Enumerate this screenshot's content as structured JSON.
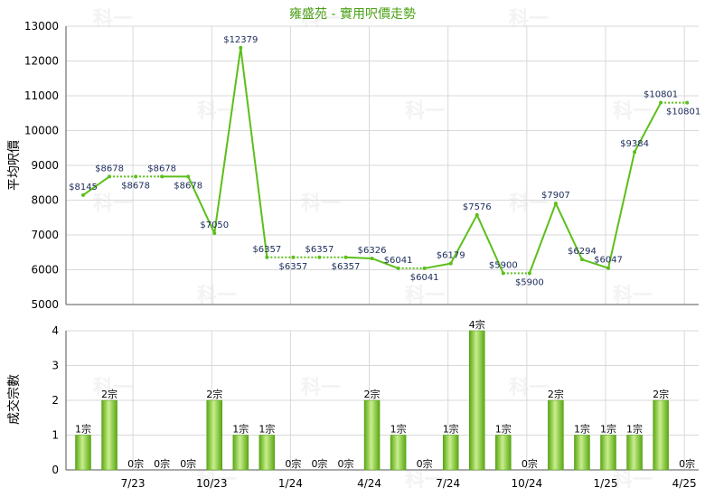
{
  "chart_data": [
    {
      "type": "line",
      "title": "雍盛苑 - 實用呎價走勢",
      "ylabel": "平均呎價",
      "ylim": [
        5000,
        13000
      ],
      "yticks": [
        5000,
        6000,
        7000,
        8000,
        9000,
        10000,
        11000,
        12000,
        13000
      ],
      "series": [
        {
          "values": [
            8145,
            8678,
            8678,
            8678,
            8678,
            7050,
            12379,
            6357,
            6357,
            6357,
            6357,
            6326,
            6041,
            6041,
            6179,
            7576,
            5900,
            5900,
            7907,
            6294,
            6047,
            9384,
            10801,
            10801
          ],
          "labels": [
            "$8145",
            "$8678",
            "$8678",
            "$8678",
            "$8678",
            "$7050",
            "$12379",
            "$6357",
            "$6357",
            "$6357",
            "$6357",
            "$6326",
            "$6041",
            "$6041",
            "$6179",
            "$7576",
            "$5900",
            "$5900",
            "$7907",
            "$6294",
            "$6047",
            "$9384",
            "$10801",
            "$10801"
          ],
          "interpolated": [
            false,
            false,
            true,
            true,
            false,
            false,
            false,
            false,
            true,
            true,
            true,
            false,
            false,
            true,
            false,
            false,
            false,
            true,
            false,
            false,
            false,
            false,
            false,
            true
          ],
          "color": "#5cbf1a"
        }
      ]
    },
    {
      "type": "bar",
      "ylabel": "成交宗數",
      "ylim": [
        0,
        4
      ],
      "yticks": [
        0,
        1,
        2,
        3,
        4
      ],
      "values": [
        1,
        2,
        0,
        0,
        0,
        2,
        1,
        1,
        0,
        0,
        0,
        2,
        1,
        0,
        1,
        4,
        1,
        0,
        2,
        1,
        1,
        1,
        2,
        0
      ],
      "labels": [
        "1宗",
        "2宗",
        "0宗",
        "0宗",
        "0宗",
        "2宗",
        "1宗",
        "1宗",
        "0宗",
        "0宗",
        "0宗",
        "2宗",
        "1宗",
        "0宗",
        "1宗",
        "4宗",
        "1宗",
        "0宗",
        "2宗",
        "1宗",
        "1宗",
        "1宗",
        "2宗",
        "0宗"
      ],
      "color": "#7fcf2a"
    }
  ],
  "x_axis": {
    "tick_labels": [
      "7/23",
      "10/23",
      "1/24",
      "4/24",
      "7/24",
      "10/24",
      "1/25",
      "4/25"
    ]
  },
  "watermark": "科一"
}
